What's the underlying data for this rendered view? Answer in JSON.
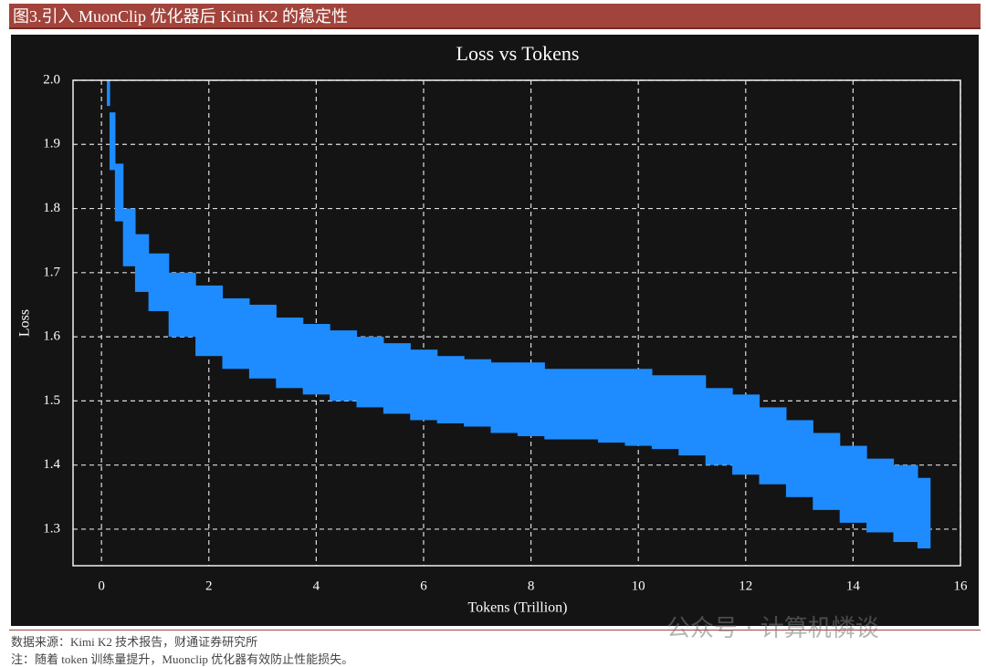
{
  "header": {
    "title": "图3.引入 MuonClip 优化器后 Kimi K2 的稳定性"
  },
  "chart_data": {
    "type": "band",
    "title": "Loss vs Tokens",
    "x_label": "Tokens (Trillion)",
    "y_label": "Loss",
    "x": [
      0.1,
      0.2,
      0.3,
      0.5,
      0.75,
      1,
      1.5,
      2,
      2.5,
      3,
      3.5,
      4,
      4.5,
      5,
      5.5,
      6,
      6.5,
      7,
      7.5,
      8,
      8.5,
      9,
      9.5,
      10,
      10.5,
      11,
      11.5,
      12,
      12.5,
      13,
      13.5,
      14,
      14.5,
      15,
      15.4
    ],
    "lower": [
      1.96,
      1.86,
      1.78,
      1.71,
      1.67,
      1.64,
      1.6,
      1.57,
      1.55,
      1.535,
      1.52,
      1.51,
      1.5,
      1.49,
      1.48,
      1.47,
      1.465,
      1.46,
      1.45,
      1.445,
      1.44,
      1.44,
      1.435,
      1.43,
      1.425,
      1.415,
      1.4,
      1.385,
      1.37,
      1.35,
      1.33,
      1.31,
      1.295,
      1.28,
      1.27
    ],
    "upper": [
      2.0,
      1.95,
      1.87,
      1.8,
      1.76,
      1.73,
      1.7,
      1.68,
      1.66,
      1.65,
      1.63,
      1.62,
      1.61,
      1.6,
      1.59,
      1.58,
      1.57,
      1.565,
      1.56,
      1.56,
      1.55,
      1.55,
      1.55,
      1.55,
      1.54,
      1.54,
      1.52,
      1.51,
      1.49,
      1.47,
      1.45,
      1.43,
      1.41,
      1.4,
      1.38
    ],
    "color": "#1e8cff",
    "xlim": [
      -0.53,
      16
    ],
    "ylim": [
      1.243,
      2.0
    ],
    "xticks": [
      0,
      2,
      4,
      6,
      8,
      10,
      12,
      14,
      16
    ],
    "yticks": [
      1.3,
      1.4,
      1.5,
      1.6,
      1.7,
      1.8,
      1.9,
      {
        "value": 2,
        "label": "2.0"
      }
    ],
    "grid": true
  },
  "footer": {
    "source": "数据来源：Kimi K2 技术报告，财通证券研究所",
    "note": "注：随着 token 训练量提升，Muonclip 优化器有效防止性能损失。",
    "watermark": "公众号 · 计算机憐谈"
  }
}
